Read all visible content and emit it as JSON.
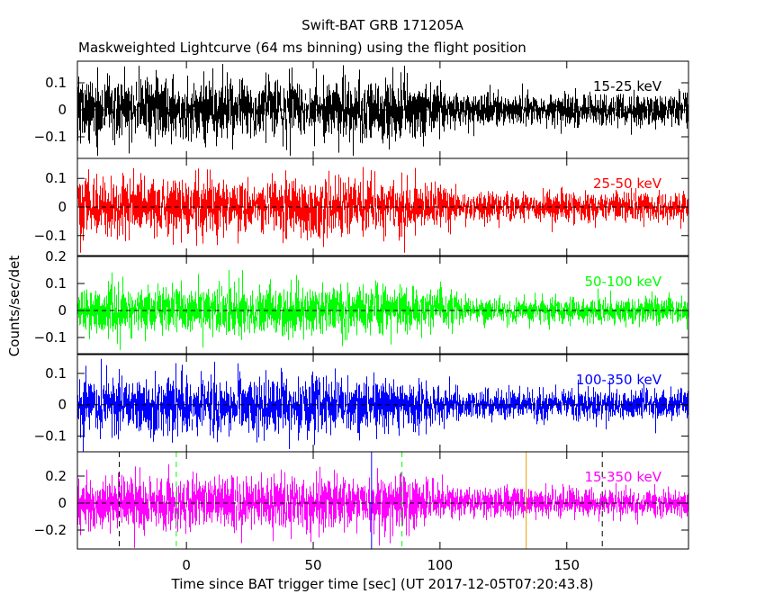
{
  "chart_data": {
    "type": "line",
    "title": "Swift-BAT GRB 171205A",
    "subtitle": "Maskweighted Lightcurve (64 ms binning) using the flight position",
    "xlabel": "Time since BAT trigger time [sec] (UT 2017-12-05T07:20:43.8)",
    "ylabel": "Counts/sec/det",
    "xlim": [
      -43,
      198
    ],
    "xticks": [
      0,
      50,
      100,
      150
    ],
    "grid": false,
    "binning_sec": 0.064,
    "panels": [
      {
        "name": "15-25 keV",
        "color": "#000000",
        "ylim": [
          -0.18,
          0.18
        ],
        "yticks": [
          0.1,
          0,
          -0.1
        ],
        "ytick_labels": [
          "0.1",
          "0",
          "−0.1"
        ],
        "zero_line": true,
        "noise_sigma": {
          "early": 0.058,
          "late": 0.03
        },
        "peak_abs": 0.17
      },
      {
        "name": "25-50 keV",
        "color": "#ff0000",
        "ylim": [
          -0.17,
          0.17
        ],
        "yticks": [
          0.1,
          0,
          -0.1
        ],
        "ytick_labels": [
          "0.1",
          "0",
          "−0.1"
        ],
        "zero_line": true,
        "noise_sigma": {
          "early": 0.05,
          "late": 0.026
        },
        "peak_abs": 0.16
      },
      {
        "name": "50-100 keV",
        "color": "#00ff00",
        "ylim": [
          -0.16,
          0.2
        ],
        "yticks": [
          0.2,
          0.1,
          0,
          -0.1
        ],
        "ytick_labels": [
          "0.2",
          "0.1",
          "0",
          "−0.1"
        ],
        "zero_line": true,
        "noise_sigma": {
          "early": 0.045,
          "late": 0.024
        },
        "peak_abs": 0.15
      },
      {
        "name": "100-350 keV",
        "color": "#0000ff",
        "ylim": [
          -0.15,
          0.16
        ],
        "yticks": [
          0.1,
          0,
          -0.1
        ],
        "ytick_labels": [
          "0.1",
          "0",
          "−0.1"
        ],
        "zero_line": true,
        "noise_sigma": {
          "early": 0.044,
          "late": 0.024
        },
        "peak_abs": 0.15
      },
      {
        "name": "15-350 keV",
        "color": "#ff00ff",
        "ylim": [
          -0.34,
          0.38
        ],
        "yticks": [
          0.2,
          0,
          -0.2
        ],
        "ytick_labels": [
          "0.2",
          "0",
          "−0.2"
        ],
        "zero_line": true,
        "noise_sigma": {
          "early": 0.1,
          "late": 0.055
        },
        "peak_abs": 0.36
      }
    ],
    "vertical_markers": [
      {
        "x": -26.5,
        "color": "#000000",
        "style": "dashed"
      },
      {
        "x": -4,
        "color": "#00ff00",
        "style": "dashed"
      },
      {
        "x": 73,
        "color": "#0000ff",
        "style": "solid"
      },
      {
        "x": 85,
        "color": "#00ff00",
        "style": "dashed"
      },
      {
        "x": 134,
        "color": "#e6a000",
        "style": "solid"
      },
      {
        "x": 164,
        "color": "#000000",
        "style": "dashed"
      }
    ]
  }
}
